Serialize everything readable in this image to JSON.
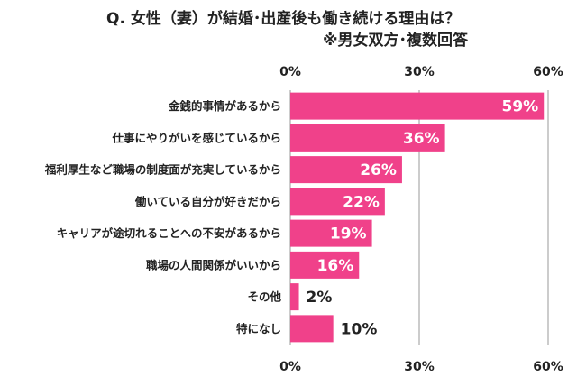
{
  "title": "Q. 女性（妻）が結婚･出産後も働き続ける理由は？",
  "subtitle": "※男女双方･複数回答",
  "chart_data": {
    "type": "bar",
    "orientation": "horizontal",
    "categories": [
      "金銭的事情があるから",
      "仕事にやりがいを感じているから",
      "福利厚生など職場の制度面が充実しているから",
      "働いている自分が好きだから",
      "キャリアが途切れることへの不安があるから",
      "職場の人間関係がいいから",
      "その他",
      "特になし"
    ],
    "values": [
      59,
      36,
      26,
      22,
      19,
      16,
      2,
      10
    ],
    "value_labels": [
      "59%",
      "36%",
      "26%",
      "22%",
      "19%",
      "16%",
      "2%",
      "10%"
    ],
    "xlim": [
      0,
      60
    ],
    "ticks": [
      0,
      30,
      60
    ],
    "tick_labels": [
      "0%",
      "30%",
      "60%"
    ],
    "bar_color": "#f0418a",
    "grid": true
  }
}
